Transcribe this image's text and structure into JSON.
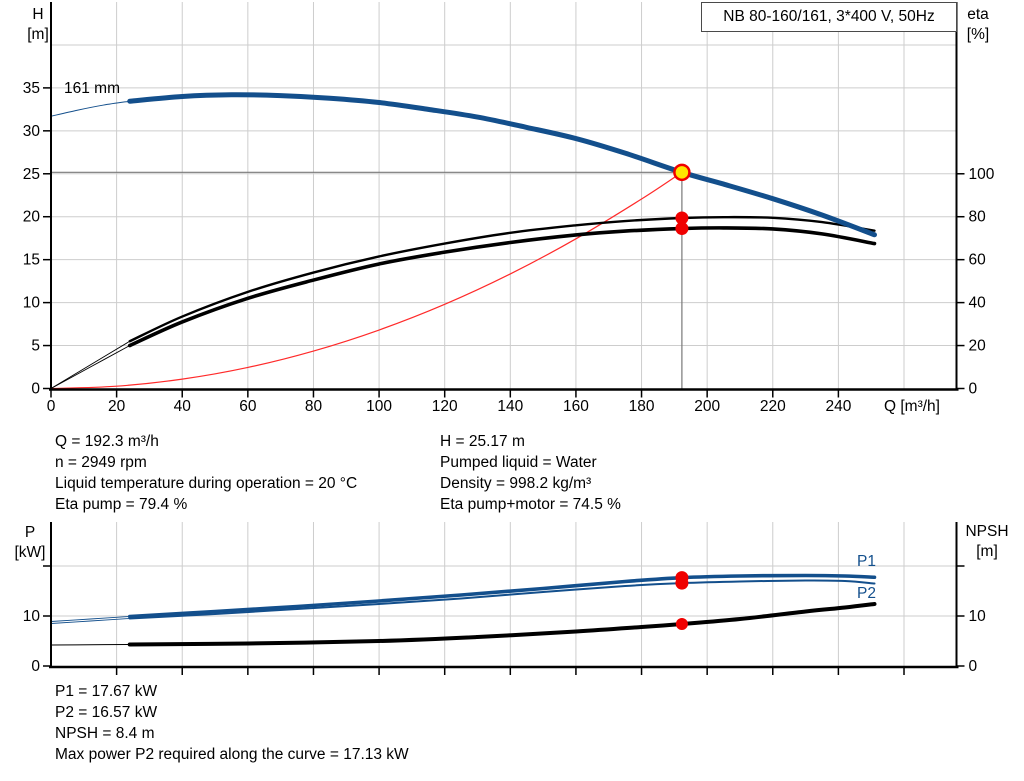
{
  "title_box": {
    "text": "NB 80-160/161, 3*400 V, 50Hz"
  },
  "info": {
    "left": [
      "Q = 192.3 m³/h",
      "n = 2949 rpm",
      "Liquid temperature during operation = 20 °C",
      "Eta pump = 79.4 %"
    ],
    "right": [
      "H = 25.17 m",
      "Pumped liquid = Water",
      "Density = 998.2 kg/m³",
      "Eta pump+motor = 74.5 %"
    ]
  },
  "footer": [
    "P1 = 17.67 kW",
    "P2 = 16.57 kW",
    "NPSH = 8.4 m",
    "Max power P2 required along the curve = 17.13 kW"
  ],
  "colors": {
    "curve_blue": "#134f8c",
    "curve_black": "#000000",
    "system_red": "#ff2a2a",
    "marker_red": "#f00000",
    "marker_yellow": "#ffe600",
    "grid": "#cdcdcd",
    "crosshair": "#787878",
    "axis": "#000000"
  },
  "chart_data": [
    {
      "type": "line",
      "name": "pump-performance",
      "xlabel": "Q [m³/h]",
      "ylabel_left": [
        "H",
        "[m]"
      ],
      "ylabel_right": [
        "eta",
        "[%]"
      ],
      "xlim": [
        0,
        276
      ],
      "ylim_left": [
        0,
        45
      ],
      "ylim_right": [
        0,
        180
      ],
      "grid": true,
      "x_ticks": [
        [
          0,
          "0"
        ],
        [
          20,
          "20"
        ],
        [
          40,
          "40"
        ],
        [
          60,
          "60"
        ],
        [
          80,
          "80"
        ],
        [
          100,
          "100"
        ],
        [
          120,
          "120"
        ],
        [
          140,
          "140"
        ],
        [
          160,
          "160"
        ],
        [
          180,
          "180"
        ],
        [
          200,
          "200"
        ],
        [
          220,
          "220"
        ],
        [
          240,
          "240"
        ]
      ],
      "x_grid": [
        20,
        40,
        60,
        80,
        100,
        120,
        140,
        160,
        180,
        200,
        220,
        240,
        260
      ],
      "y_ticks_left": [
        [
          0,
          "0"
        ],
        [
          5,
          "5"
        ],
        [
          10,
          "10"
        ],
        [
          15,
          "15"
        ],
        [
          20,
          "20"
        ],
        [
          25,
          "25"
        ],
        [
          30,
          "30"
        ],
        [
          35,
          "35"
        ]
      ],
      "y_grid_left": [
        5,
        10,
        15,
        20,
        25,
        30,
        35,
        40
      ],
      "y_ticks_right": [
        [
          0,
          "0"
        ],
        [
          20,
          "20"
        ],
        [
          40,
          "40"
        ],
        [
          60,
          "60"
        ],
        [
          80,
          "80"
        ],
        [
          100,
          "100"
        ]
      ],
      "duty_point": {
        "x": 192.3,
        "y": 25.17
      },
      "curve_label": "161 mm",
      "series": [
        {
          "name": "system-curve",
          "axis": "left",
          "color": "#ff2a2a",
          "width": 1.2,
          "points": [
            [
              0,
              0
            ],
            [
              20,
              0.27
            ],
            [
              40,
              1.09
            ],
            [
              60,
              2.45
            ],
            [
              80,
              4.36
            ],
            [
              100,
              6.81
            ],
            [
              120,
              9.8
            ],
            [
              140,
              13.34
            ],
            [
              160,
              17.43
            ],
            [
              180,
              22.06
            ],
            [
              192.3,
              25.17
            ]
          ]
        },
        {
          "name": "eta-pump-curve",
          "axis": "right",
          "color": "#000000",
          "width": 2.4,
          "pre_width": 0.9,
          "pre": [
            [
              0,
              0
            ],
            [
              12,
              11
            ],
            [
              24,
              22
            ]
          ],
          "points": [
            [
              24,
              22
            ],
            [
              40,
              33.5
            ],
            [
              60,
              45
            ],
            [
              80,
              54
            ],
            [
              100,
              61.5
            ],
            [
              120,
              67.5
            ],
            [
              140,
              72.5
            ],
            [
              160,
              76
            ],
            [
              175,
              78
            ],
            [
              192.3,
              79.4
            ],
            [
              205,
              79.8
            ],
            [
              220,
              79.5
            ],
            [
              235,
              77.5
            ],
            [
              251,
              73.5
            ]
          ]
        },
        {
          "name": "eta-pump-motor-curve",
          "axis": "right",
          "color": "#000000",
          "width": 3.6,
          "pre_width": 0.9,
          "pre": [
            [
              0,
              0
            ],
            [
              12,
              10
            ],
            [
              24,
              20
            ]
          ],
          "points": [
            [
              24,
              20
            ],
            [
              40,
              31
            ],
            [
              60,
              42
            ],
            [
              80,
              50.5
            ],
            [
              100,
              58
            ],
            [
              120,
              63.5
            ],
            [
              140,
              68
            ],
            [
              160,
              71.5
            ],
            [
              175,
              73.3
            ],
            [
              192.3,
              74.5
            ],
            [
              205,
              74.8
            ],
            [
              220,
              74.3
            ],
            [
              235,
              72
            ],
            [
              251,
              67.5
            ]
          ]
        },
        {
          "name": "head-curve-161mm",
          "axis": "left",
          "color": "#134f8c",
          "width": 5,
          "pre_width": 1,
          "pre": [
            [
              0,
              31.7
            ],
            [
              8,
              32.4
            ],
            [
              16,
              33.0
            ],
            [
              24,
              33.45
            ]
          ],
          "points": [
            [
              24,
              33.45
            ],
            [
              40,
              34.0
            ],
            [
              55,
              34.2
            ],
            [
              70,
              34.1
            ],
            [
              85,
              33.8
            ],
            [
              100,
              33.3
            ],
            [
              115,
              32.5
            ],
            [
              130,
              31.6
            ],
            [
              145,
              30.4
            ],
            [
              160,
              29.1
            ],
            [
              175,
              27.4
            ],
            [
              192.3,
              25.17
            ],
            [
              205,
              23.8
            ],
            [
              220,
              22.1
            ],
            [
              235,
              20.2
            ],
            [
              251,
              17.9
            ]
          ]
        }
      ],
      "markers": [
        {
          "x": 192.3,
          "y": 79.4,
          "axis": "right",
          "r": 6.5,
          "fill": "#f00000"
        },
        {
          "x": 192.3,
          "y": 74.5,
          "axis": "right",
          "r": 6.5,
          "fill": "#f00000"
        },
        {
          "x": 192.3,
          "y": 25.17,
          "axis": "left",
          "r": 7.5,
          "fill": "#ffe600",
          "stroke": "#f00000",
          "stroke_width": 2.5
        }
      ]
    },
    {
      "type": "line",
      "name": "power-npsh",
      "ylabel_left": [
        "P",
        "[kW]"
      ],
      "ylabel_right": [
        "NPSH",
        "[m]"
      ],
      "xlim": [
        0,
        276
      ],
      "ylim_left": [
        0,
        28.8
      ],
      "ylim_right": [
        0,
        28.8
      ],
      "grid": true,
      "x_ticks": [
        [
          20,
          ""
        ],
        [
          40,
          ""
        ],
        [
          60,
          ""
        ],
        [
          80,
          ""
        ],
        [
          100,
          ""
        ],
        [
          120,
          ""
        ],
        [
          140,
          ""
        ],
        [
          160,
          ""
        ],
        [
          180,
          ""
        ],
        [
          200,
          ""
        ],
        [
          220,
          ""
        ],
        [
          240,
          ""
        ],
        [
          260,
          ""
        ]
      ],
      "x_grid": [
        20,
        40,
        60,
        80,
        100,
        120,
        140,
        160,
        180,
        200,
        220,
        240,
        260
      ],
      "y_ticks_left": [
        [
          0,
          "0"
        ],
        [
          10,
          "10"
        ],
        [
          20,
          ""
        ]
      ],
      "y_grid_left": [
        10,
        20
      ],
      "y_ticks_right": [
        [
          0,
          "0"
        ],
        [
          10,
          "10"
        ],
        [
          20,
          ""
        ]
      ],
      "curve_labels": {
        "p1": "P1",
        "p2": "P2"
      },
      "series": [
        {
          "name": "npsh-curve",
          "axis": "right",
          "color": "#000000",
          "width": 4,
          "pre_width": 1,
          "pre": [
            [
              0,
              4.2
            ],
            [
              12,
              4.25
            ],
            [
              24,
              4.3
            ]
          ],
          "points": [
            [
              24,
              4.3
            ],
            [
              60,
              4.5
            ],
            [
              100,
              5.0
            ],
            [
              130,
              5.8
            ],
            [
              160,
              6.9
            ],
            [
              180,
              7.8
            ],
            [
              192.3,
              8.4
            ],
            [
              210,
              9.4
            ],
            [
              230,
              10.9
            ],
            [
              242,
              11.7
            ],
            [
              251,
              12.4
            ]
          ]
        },
        {
          "name": "p2-curve",
          "axis": "left",
          "color": "#134f8c",
          "width": 2,
          "pre_width": 0.9,
          "pre": [
            [
              0,
              8.5
            ],
            [
              12,
              9.0
            ],
            [
              24,
              9.5
            ]
          ],
          "points": [
            [
              24,
              9.5
            ],
            [
              50,
              10.4
            ],
            [
              75,
              11.4
            ],
            [
              100,
              12.4
            ],
            [
              125,
              13.5
            ],
            [
              150,
              14.8
            ],
            [
              175,
              16.0
            ],
            [
              192.3,
              16.57
            ],
            [
              210,
              16.9
            ],
            [
              230,
              17.1
            ],
            [
              242,
              17.0
            ],
            [
              251,
              16.5
            ]
          ]
        },
        {
          "name": "p1-curve",
          "axis": "left",
          "color": "#134f8c",
          "width": 3.6,
          "pre_width": 0.9,
          "pre": [
            [
              0,
              8.9
            ],
            [
              12,
              9.4
            ],
            [
              24,
              9.9
            ]
          ],
          "points": [
            [
              24,
              9.9
            ],
            [
              50,
              10.9
            ],
            [
              75,
              11.9
            ],
            [
              100,
              13.0
            ],
            [
              125,
              14.2
            ],
            [
              150,
              15.5
            ],
            [
              175,
              16.9
            ],
            [
              192.3,
              17.67
            ],
            [
              210,
              18.0
            ],
            [
              230,
              18.1
            ],
            [
              242,
              18.0
            ],
            [
              251,
              17.75
            ]
          ]
        }
      ],
      "markers": [
        {
          "x": 192.3,
          "y": 17.67,
          "axis": "left",
          "r": 6.5,
          "fill": "#f00000"
        },
        {
          "x": 192.3,
          "y": 16.57,
          "axis": "left",
          "r": 6.5,
          "fill": "#f00000"
        },
        {
          "x": 192.3,
          "y": 8.4,
          "axis": "right",
          "r": 6,
          "fill": "#f00000"
        }
      ]
    }
  ]
}
